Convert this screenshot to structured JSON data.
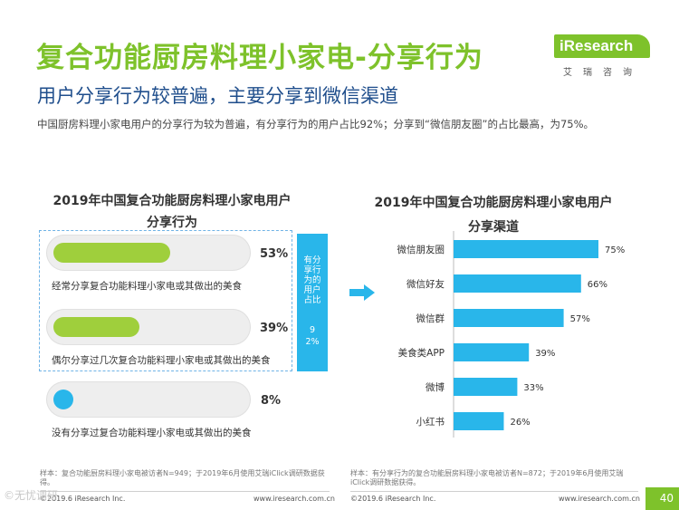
{
  "header": {
    "title": "复合功能厨房料理小家电-分享行为",
    "subtitle": "用户分享行为较普遍，主要分享到微信渠道",
    "summary": "中国厨房料理小家电用户的分享行为较为普遍，有分享行为的用户占比92%；分享到“微信朋友圈”的占比最高，为75%。"
  },
  "logo": {
    "brand": "iResearch",
    "cn": "艾瑞咨询"
  },
  "left_panel": {
    "title_line1": "2019年中国复合功能厨房料理小家电用户",
    "title_line2": "分享行为",
    "share_box_label": "有分享行为的用户占比",
    "share_box_value": "92%",
    "note": "样本：复合功能厨房料理小家电被访者N=949；于2019年6月使用艾瑞iClick调研数据获得。",
    "copyright": "©2019.6 iResearch Inc.",
    "website": "www.iresearch.com.cn"
  },
  "right_panel": {
    "title_line1": "2019年中国复合功能厨房料理小家电用户",
    "title_line2": "分享渠道",
    "note": "样本：有分享行为的复合功能厨房料理小家电被访者N=872；于2019年6月使用艾瑞iClick调研数据获得。",
    "copyright": "©2019.6 iResearch Inc.",
    "website": "www.iresearch.com.cn"
  },
  "page_number": "40",
  "watermark": "©无忧调研",
  "colors": {
    "accent_green": "#7ec22b",
    "bar_blue": "#29b6ea",
    "title_blue": "#1f4e8c",
    "empty_dot": "#29b6ea"
  },
  "chart_data": [
    {
      "type": "bar",
      "orientation": "horizontal-pill",
      "title": "2019年中国复合功能厨房料理小家电用户分享行为",
      "categories": [
        "经常分享复合功能料理小家电或其做出的美食",
        "偶尔分享过几次复合功能料理小家电或其做出的美食",
        "没有分享过复合功能料理小家电或其做出的美食"
      ],
      "values": [
        53,
        39,
        8
      ],
      "labels": [
        "53%",
        "39%",
        "8%"
      ],
      "fill_colors": [
        "#9fcf3c",
        "#9fcf3c",
        "#29b6ea"
      ],
      "unit": "%"
    },
    {
      "type": "bar",
      "orientation": "horizontal",
      "title": "2019年中国复合功能厨房料理小家电用户分享渠道",
      "categories": [
        "微信朋友圈",
        "微信好友",
        "微信群",
        "美食类APP",
        "微博",
        "小红书"
      ],
      "values": [
        75,
        66,
        57,
        39,
        33,
        26
      ],
      "labels": [
        "75%",
        "66%",
        "57%",
        "39%",
        "33%",
        "26%"
      ],
      "unit": "%",
      "xlim": [
        0,
        100
      ],
      "color": "#29b6ea"
    }
  ]
}
